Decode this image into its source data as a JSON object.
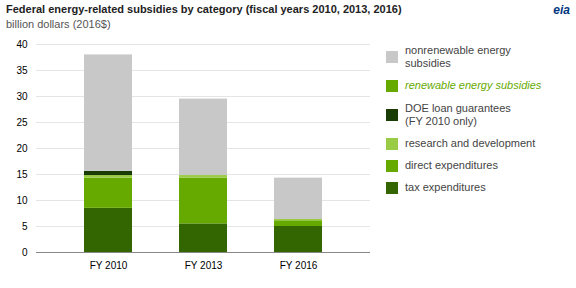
{
  "chart_data": {
    "type": "bar",
    "stacked": true,
    "title": "Federal energy-related subsidies by category (fiscal years 2010, 2013, 2016)",
    "subtitle": "billion dollars (2016$)",
    "categories": [
      "FY 2010",
      "FY 2013",
      "FY 2016"
    ],
    "series": [
      {
        "name": "tax expenditures",
        "color": "#336600",
        "values": [
          8.5,
          5.5,
          5.0
        ]
      },
      {
        "name": "direct expenditures",
        "color": "#66aa00",
        "values": [
          5.8,
          8.8,
          1.1
        ]
      },
      {
        "name": "research and development",
        "color": "#99cc44",
        "values": [
          0.5,
          0.5,
          0.25
        ]
      },
      {
        "name": "DOE loan guarantees\n(FY 2010 only)",
        "color": "#1a3d06",
        "values": [
          0.8,
          0.0,
          0.0
        ]
      },
      {
        "name": "nonrenewable energy\nsubsidies",
        "color": "#c8c8c8",
        "values": [
          22.4,
          14.7,
          7.95
        ]
      }
    ],
    "ylim": [
      0,
      40
    ],
    "yticks": [
      0,
      5,
      10,
      15,
      20,
      25,
      30,
      35,
      40
    ],
    "grid": true,
    "annotations": [
      {
        "text": "renewable energy subsidies",
        "color": "#66aa00"
      },
      {
        "text": "eia"
      }
    ]
  }
}
